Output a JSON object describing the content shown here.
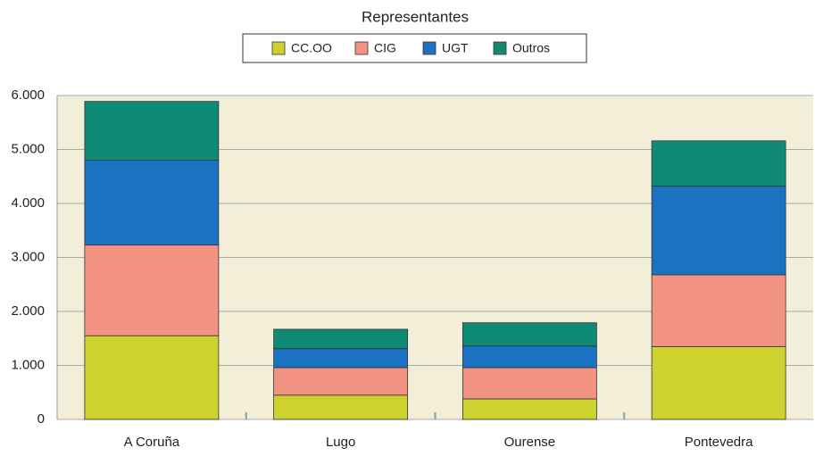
{
  "chart_data": {
    "type": "stacked_bar",
    "title": "Representantes",
    "categories": [
      "A Coruña",
      "Lugo",
      "Ourense",
      "Pontevedra"
    ],
    "series": [
      {
        "name": "CC.OO",
        "color": "#cdd22e",
        "values": [
          1550,
          450,
          380,
          1350
        ]
      },
      {
        "name": "CIG",
        "color": "#f39383",
        "values": [
          1680,
          510,
          580,
          1330
        ]
      },
      {
        "name": "UGT",
        "color": "#1a72c0",
        "values": [
          1570,
          350,
          400,
          1640
        ]
      },
      {
        "name": "Outros",
        "color": "#0f8a75",
        "values": [
          1090,
          360,
          430,
          840
        ]
      }
    ],
    "ylim": [
      0,
      6000
    ],
    "yticks": [
      0,
      {
        "value": 1000,
        "label": "1.000"
      },
      {
        "value": 2000,
        "label": "2.000"
      },
      {
        "value": 3000,
        "label": "3.000"
      },
      {
        "value": 4000,
        "label": "4.000"
      },
      {
        "value": 5000,
        "label": "5.000"
      },
      {
        "value": 6000,
        "label": "6.000"
      }
    ],
    "grid": true,
    "legend": "top"
  }
}
